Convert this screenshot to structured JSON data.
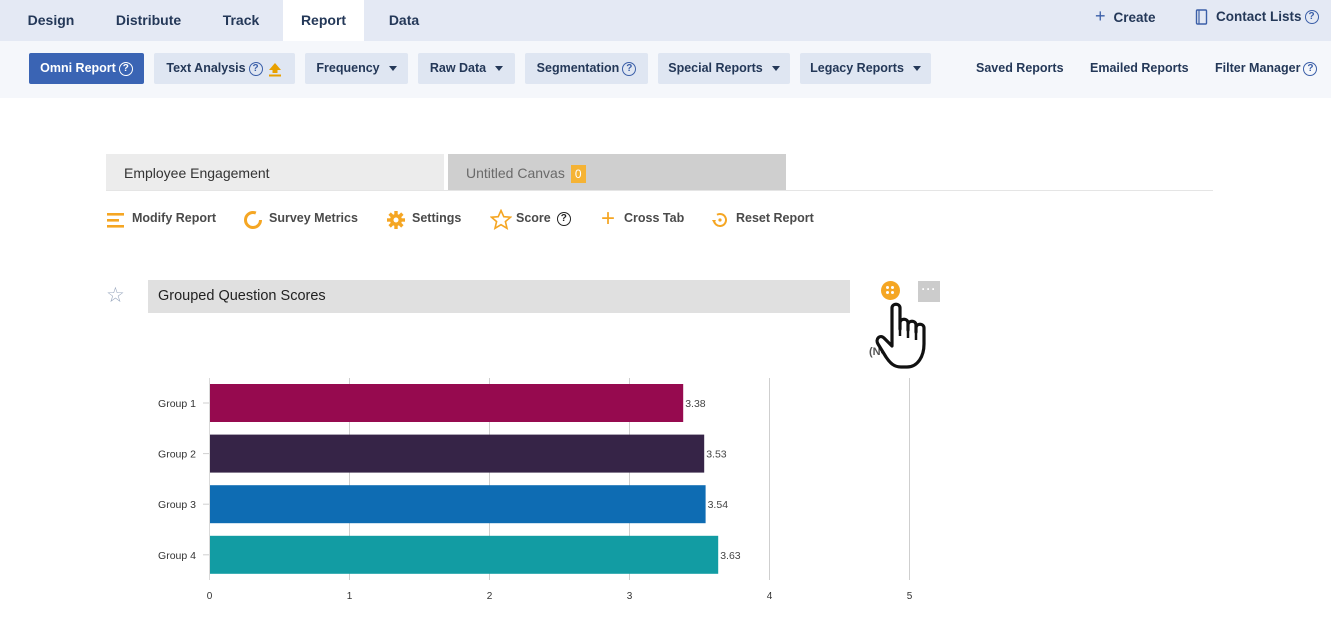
{
  "top_nav": {
    "tabs": [
      "Design",
      "Distribute",
      "Track",
      "Report",
      "Data"
    ],
    "active_tab": "Report",
    "create_label": "Create",
    "contact_lists_label": "Contact Lists"
  },
  "sub_nav": {
    "omni_report": "Omni Report",
    "text_analysis": "Text Analysis",
    "frequency": "Frequency",
    "raw_data": "Raw Data",
    "segmentation": "Segmentation",
    "special_reports": "Special Reports",
    "legacy_reports": "Legacy Reports",
    "saved_reports": "Saved Reports",
    "emailed_reports": "Emailed Reports",
    "filter_manager": "Filter Manager"
  },
  "report_tabs": {
    "tab1": "Employee Engagement",
    "tab2": "Untitled Canvas",
    "tab2_badge": "0"
  },
  "toolbar": {
    "modify_report": "Modify Report",
    "survey_metrics": "Survey Metrics",
    "settings": "Settings",
    "score": "Score",
    "cross_tab": "Cross Tab",
    "reset_report": "Reset Report"
  },
  "widget": {
    "title": "Grouped Question Scores",
    "n_label": "(N=",
    "more_label": "···"
  },
  "colors": {
    "accent": "#f5a623",
    "primary_button": "#3a64b4",
    "nav_bg": "#e4e9f4"
  },
  "icons": {
    "create": "plus-icon",
    "contact_lists": "book-icon",
    "help": "question-circle-icon",
    "upload": "upload-arrow-icon",
    "modify_report": "menu-lines-icon",
    "survey_metrics": "donut-icon",
    "settings": "gear-icon",
    "score": "star-outline-icon",
    "cross_tab": "plus-icon",
    "reset_report": "reset-arrow-icon",
    "favorite": "star-outline-icon",
    "cursor": "hand-pointer-icon"
  },
  "chart_data": {
    "type": "bar",
    "orientation": "horizontal",
    "categories": [
      "Group 1",
      "Group 2",
      "Group 3",
      "Group 4"
    ],
    "values": [
      3.38,
      3.53,
      3.54,
      3.63
    ],
    "value_labels": [
      "3.38",
      "3.53",
      "3.54",
      "3.63"
    ],
    "colors": [
      "#960a4f",
      "#362447",
      "#0e6cb3",
      "#129ca3"
    ],
    "xlim": [
      0,
      5
    ],
    "xticks": [
      "0",
      "1",
      "2",
      "3",
      "4",
      "5"
    ],
    "grid": true
  }
}
